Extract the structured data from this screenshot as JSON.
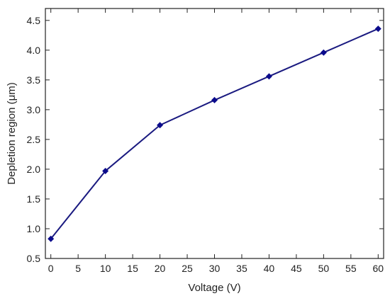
{
  "chart_data": {
    "type": "line",
    "xlabel": "Voltage (V)",
    "ylabel": "Depletion region (μm)",
    "xlim": [
      -1,
      61
    ],
    "ylim": [
      0.5,
      4.7
    ],
    "x_ticks": [
      "0",
      "5",
      "10",
      "15",
      "20",
      "25",
      "30",
      "35",
      "40",
      "45",
      "50",
      "55",
      "60"
    ],
    "y_ticks": [
      "0.5",
      "1.0",
      "1.5",
      "2.0",
      "2.5",
      "3.0",
      "3.5",
      "4.0",
      "4.5"
    ],
    "series": [
      {
        "x": [
          0,
          10,
          20,
          30,
          40,
          50,
          60
        ],
        "y": [
          0.83,
          1.97,
          2.74,
          3.16,
          3.56,
          3.96,
          4.36
        ]
      }
    ],
    "line_color": "#1a1a80",
    "marker_color": "#0b0b8c",
    "marker": "diamond",
    "grid": false,
    "legend": "none"
  }
}
